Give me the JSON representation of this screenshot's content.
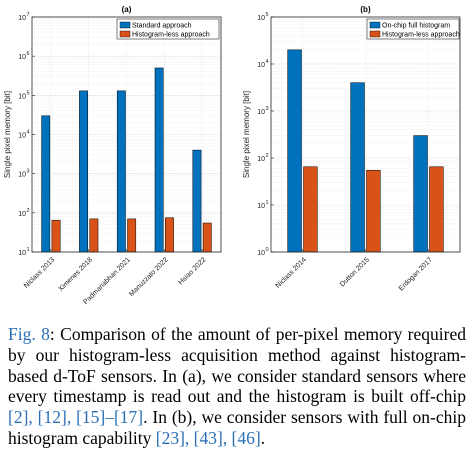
{
  "chart_data": [
    {
      "type": "bar",
      "panel_label": "(a)",
      "categories": [
        "Niclass 2013",
        "Ximenes 2018",
        "Padmanabhan 2021",
        "Manuzzato 2022",
        "Hsiao 2022"
      ],
      "series": [
        {
          "name": "Standard approach",
          "color": "#0072bd",
          "values": [
            30000,
            130000,
            130000,
            500000,
            4000
          ]
        },
        {
          "name": "Histogram-less approach",
          "color": "#d95319",
          "values": [
            65,
            70,
            70,
            75,
            55
          ]
        }
      ],
      "ylabel": "Single pixel memory [bit]",
      "xlabel": "",
      "yscale": "log",
      "ylim": [
        10,
        10000000
      ],
      "yticks": [
        "10",
        "10",
        "10",
        "10",
        "10",
        "10",
        "10"
      ],
      "ytick_exponents": [
        "1",
        "2",
        "3",
        "4",
        "5",
        "6",
        "7"
      ],
      "grid": true,
      "legend_position": "top-left"
    },
    {
      "type": "bar",
      "panel_label": "(b)",
      "categories": [
        "Niclass 2014",
        "Dutton 2015",
        "Erdogan 2017"
      ],
      "series": [
        {
          "name": "On-chip full histogram",
          "color": "#0072bd",
          "values": [
            20000,
            4000,
            300
          ]
        },
        {
          "name": "Histogram-less approach",
          "color": "#d95319",
          "values": [
            65,
            55,
            65
          ]
        }
      ],
      "ylabel": "Single pixel memory [bit]",
      "xlabel": "",
      "yscale": "log",
      "ylim": [
        1,
        100000
      ],
      "yticks": [
        "10",
        "10",
        "10",
        "10",
        "10",
        "10"
      ],
      "ytick_exponents": [
        "0",
        "1",
        "2",
        "3",
        "4",
        "5"
      ],
      "grid": true,
      "legend_position": "top-left"
    }
  ],
  "caption": {
    "label": "Fig. 8",
    "text_1": ": Comparison of the amount of per-pixel memory required by our histogram-less acquisition method against histogram-based d-ToF sensors. In (a), we consider standard sensors where every timestamp is read out and the histogram is built off-chip ",
    "refs_1": "[2], [12], [15]–[17]",
    "text_2": ". In (b), we consider sensors with full on-chip histogram capability ",
    "refs_2": "[23], [43], [46]",
    "text_3": "."
  }
}
